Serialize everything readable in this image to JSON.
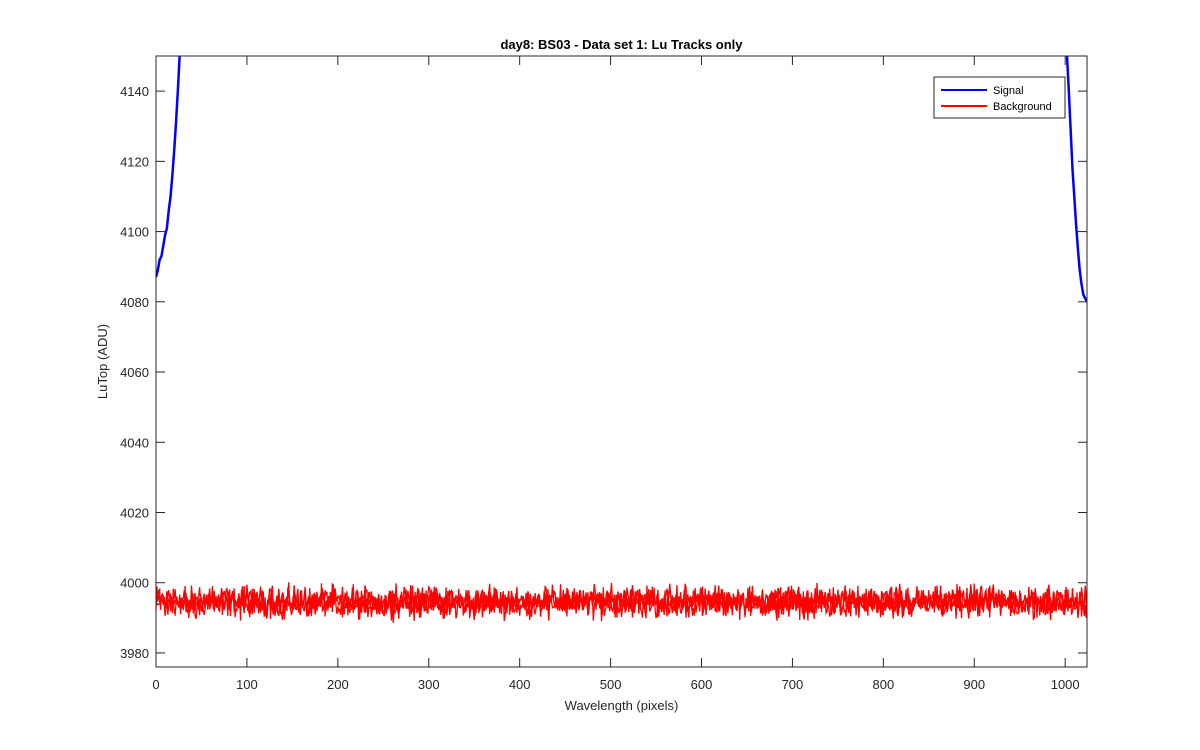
{
  "chart_data": {
    "type": "line",
    "title": "day8: BS03 - Data set 1: Lu Tracks only",
    "xlabel": "Wavelength (pixels)",
    "ylabel": "LuTop (ADU)",
    "xlim": [
      0,
      1024
    ],
    "ylim": [
      3976,
      4150
    ],
    "xticks": [
      0,
      100,
      200,
      300,
      400,
      500,
      600,
      700,
      800,
      900,
      1000
    ],
    "yticks": [
      3980,
      4000,
      4020,
      4040,
      4060,
      4080,
      4100,
      4120,
      4140
    ],
    "grid": false,
    "legend_position": "top-right",
    "series": [
      {
        "name": "Signal",
        "color": "#0000ff",
        "segments": [
          {
            "x": [
              0,
              2,
              4,
              6,
              8,
              10,
              12,
              14,
              16,
              18,
              20,
              22,
              24,
              25,
              26
            ],
            "y": [
              4087,
              4089,
              4092,
              4093,
              4096,
              4099,
              4101,
              4106,
              4110,
              4116,
              4123,
              4131,
              4140,
              4145,
              4150
            ]
          },
          {
            "x": [
              1002,
              1004,
              1006,
              1008,
              1010,
              1012,
              1014,
              1016,
              1018,
              1020,
              1022,
              1024
            ],
            "y": [
              4150,
              4140,
              4129,
              4118,
              4110,
              4102,
              4095,
              4089,
              4085,
              4082,
              4081,
              4080
            ]
          }
        ]
      },
      {
        "name": "Background",
        "color": "#ff0000",
        "noise": {
          "y_center": 3994.5,
          "x_range": [
            0,
            1024
          ],
          "y_min": 3986.5,
          "y_max": 4000.5
        }
      }
    ]
  }
}
